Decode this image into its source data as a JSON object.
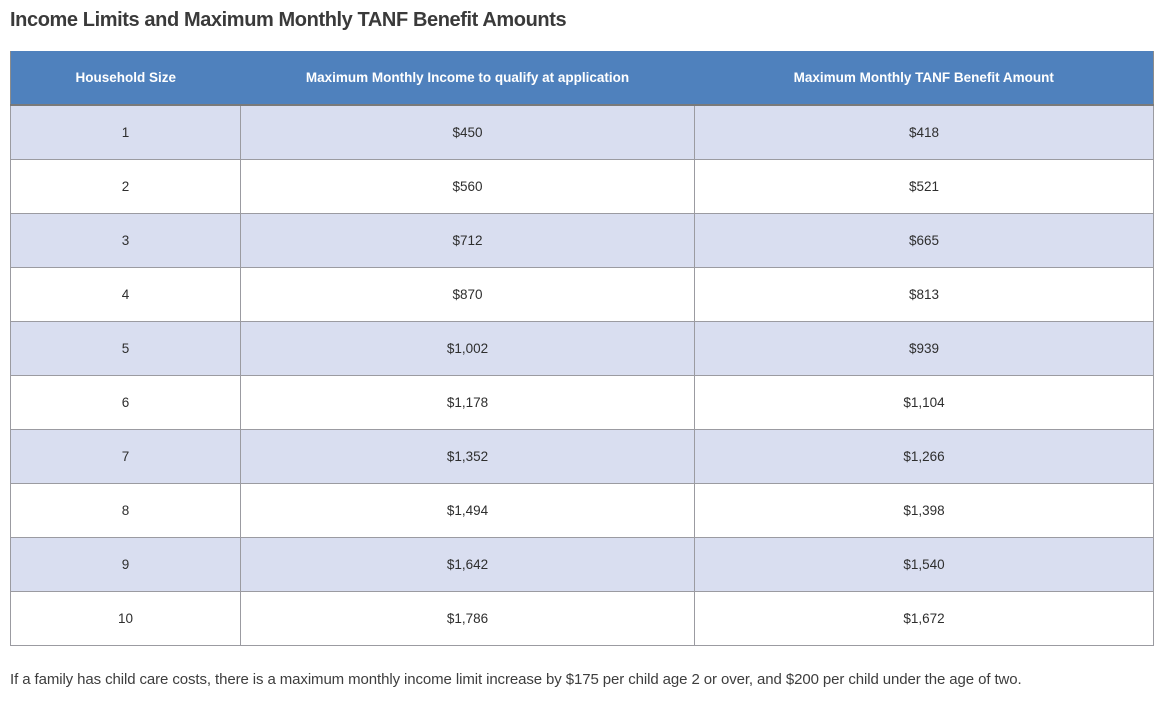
{
  "page": {
    "title": "Income Limits and Maximum Monthly TANF Benefit Amounts",
    "footnote": "If a family has child care costs, there is a maximum monthly income limit increase by $175 per child age 2 or over, and $200 per child under the age of two."
  },
  "colors": {
    "header_bg": "#4f81bd",
    "header_text": "#ffffff",
    "row_alt_bg": "#d9def0",
    "row_bg": "#ffffff",
    "outer_border": "#8c8c8c",
    "inner_border": "#9b9ba1",
    "title_text": "#3a3a3a",
    "body_text": "#2e2e2e"
  },
  "table": {
    "columns": [
      "Household Size",
      "Maximum Monthly Income to qualify at application",
      "Maximum Monthly TANF Benefit Amount"
    ],
    "rows": [
      {
        "household_size": "1",
        "max_income": "$450",
        "max_benefit": "$418"
      },
      {
        "household_size": "2",
        "max_income": "$560",
        "max_benefit": "$521"
      },
      {
        "household_size": "3",
        "max_income": "$712",
        "max_benefit": "$665"
      },
      {
        "household_size": "4",
        "max_income": "$870",
        "max_benefit": "$813"
      },
      {
        "household_size": "5",
        "max_income": "$1,002",
        "max_benefit": "$939"
      },
      {
        "household_size": "6",
        "max_income": "$1,178",
        "max_benefit": "$1,104"
      },
      {
        "household_size": "7",
        "max_income": "$1,352",
        "max_benefit": "$1,266"
      },
      {
        "household_size": "8",
        "max_income": "$1,494",
        "max_benefit": "$1,398"
      },
      {
        "household_size": "9",
        "max_income": "$1,642",
        "max_benefit": "$1,540"
      },
      {
        "household_size": "10",
        "max_income": "$1,786",
        "max_benefit": "$1,672"
      }
    ]
  }
}
